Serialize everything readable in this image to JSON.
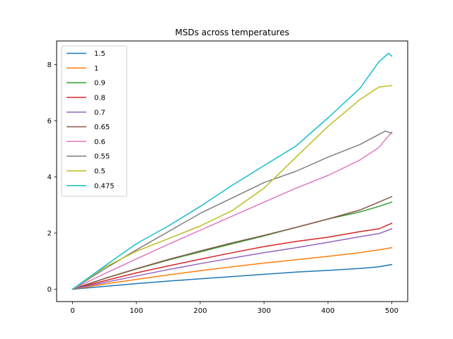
{
  "chart_data": {
    "type": "line",
    "title": "MSDs across temperatures",
    "xlabel": "",
    "ylabel": "",
    "xlim": [
      -25,
      525
    ],
    "ylim": [
      -0.44,
      8.84
    ],
    "xticks": [
      0,
      100,
      200,
      300,
      400,
      500
    ],
    "yticks": [
      0,
      2,
      4,
      6,
      8
    ],
    "legend_position": "upper-left",
    "grid": false,
    "series": [
      {
        "name": "1.5",
        "color": "#1f77b4",
        "points": [
          [
            0,
            0
          ],
          [
            50,
            0.1
          ],
          [
            100,
            0.2
          ],
          [
            150,
            0.29
          ],
          [
            200,
            0.37
          ],
          [
            250,
            0.45
          ],
          [
            300,
            0.53
          ],
          [
            350,
            0.61
          ],
          [
            400,
            0.67
          ],
          [
            450,
            0.74
          ],
          [
            480,
            0.8
          ],
          [
            500,
            0.88
          ]
        ]
      },
      {
        "name": "1",
        "color": "#ff7f0e",
        "points": [
          [
            0,
            0
          ],
          [
            50,
            0.18
          ],
          [
            100,
            0.35
          ],
          [
            150,
            0.51
          ],
          [
            200,
            0.66
          ],
          [
            250,
            0.8
          ],
          [
            300,
            0.93
          ],
          [
            350,
            1.05
          ],
          [
            400,
            1.17
          ],
          [
            450,
            1.3
          ],
          [
            480,
            1.4
          ],
          [
            500,
            1.48
          ]
        ]
      },
      {
        "name": "0.9",
        "color": "#2ca02c",
        "points": [
          [
            0,
            0
          ],
          [
            50,
            0.38
          ],
          [
            100,
            0.72
          ],
          [
            150,
            1.04
          ],
          [
            200,
            1.33
          ],
          [
            250,
            1.62
          ],
          [
            300,
            1.9
          ],
          [
            350,
            2.2
          ],
          [
            400,
            2.5
          ],
          [
            450,
            2.75
          ],
          [
            480,
            2.95
          ],
          [
            500,
            3.1
          ]
        ]
      },
      {
        "name": "0.8",
        "color": "#d62728",
        "points": [
          [
            0,
            0
          ],
          [
            50,
            0.3
          ],
          [
            100,
            0.58
          ],
          [
            150,
            0.83
          ],
          [
            200,
            1.07
          ],
          [
            250,
            1.3
          ],
          [
            300,
            1.52
          ],
          [
            350,
            1.7
          ],
          [
            400,
            1.85
          ],
          [
            450,
            2.05
          ],
          [
            480,
            2.15
          ],
          [
            500,
            2.35
          ]
        ]
      },
      {
        "name": "0.7",
        "color": "#9467bd",
        "points": [
          [
            0,
            0
          ],
          [
            50,
            0.24
          ],
          [
            100,
            0.47
          ],
          [
            150,
            0.7
          ],
          [
            200,
            0.91
          ],
          [
            250,
            1.11
          ],
          [
            300,
            1.3
          ],
          [
            350,
            1.48
          ],
          [
            400,
            1.67
          ],
          [
            450,
            1.87
          ],
          [
            480,
            1.98
          ],
          [
            500,
            2.15
          ]
        ]
      },
      {
        "name": "0.65",
        "color": "#8c564b",
        "points": [
          [
            0,
            0
          ],
          [
            50,
            0.38
          ],
          [
            100,
            0.73
          ],
          [
            150,
            1.06
          ],
          [
            200,
            1.36
          ],
          [
            250,
            1.65
          ],
          [
            300,
            1.92
          ],
          [
            350,
            2.2
          ],
          [
            400,
            2.5
          ],
          [
            450,
            2.82
          ],
          [
            480,
            3.1
          ],
          [
            500,
            3.3
          ]
        ]
      },
      {
        "name": "0.6",
        "color": "#e377c2",
        "points": [
          [
            0,
            0
          ],
          [
            50,
            0.55
          ],
          [
            100,
            1.08
          ],
          [
            150,
            1.6
          ],
          [
            200,
            2.1
          ],
          [
            250,
            2.6
          ],
          [
            300,
            3.1
          ],
          [
            350,
            3.6
          ],
          [
            400,
            4.05
          ],
          [
            450,
            4.6
          ],
          [
            480,
            5.05
          ],
          [
            500,
            5.6
          ]
        ]
      },
      {
        "name": "0.55",
        "color": "#7f7f7f",
        "points": [
          [
            0,
            0
          ],
          [
            50,
            0.72
          ],
          [
            100,
            1.4
          ],
          [
            150,
            2.05
          ],
          [
            200,
            2.7
          ],
          [
            250,
            3.25
          ],
          [
            300,
            3.8
          ],
          [
            350,
            4.2
          ],
          [
            400,
            4.7
          ],
          [
            450,
            5.15
          ],
          [
            490,
            5.63
          ],
          [
            500,
            5.55
          ]
        ]
      },
      {
        "name": "0.5",
        "color": "#bcbd22",
        "points": [
          [
            0,
            0
          ],
          [
            50,
            0.78
          ],
          [
            100,
            1.35
          ],
          [
            150,
            1.8
          ],
          [
            200,
            2.25
          ],
          [
            250,
            2.8
          ],
          [
            300,
            3.6
          ],
          [
            350,
            4.7
          ],
          [
            400,
            5.8
          ],
          [
            450,
            6.75
          ],
          [
            480,
            7.2
          ],
          [
            500,
            7.25
          ]
        ]
      },
      {
        "name": "0.475",
        "color": "#17becf",
        "points": [
          [
            0,
            0
          ],
          [
            50,
            0.82
          ],
          [
            100,
            1.62
          ],
          [
            150,
            2.25
          ],
          [
            200,
            2.95
          ],
          [
            250,
            3.7
          ],
          [
            300,
            4.4
          ],
          [
            350,
            5.1
          ],
          [
            400,
            6.1
          ],
          [
            450,
            7.15
          ],
          [
            480,
            8.1
          ],
          [
            495,
            8.4
          ],
          [
            500,
            8.3
          ]
        ]
      }
    ]
  }
}
